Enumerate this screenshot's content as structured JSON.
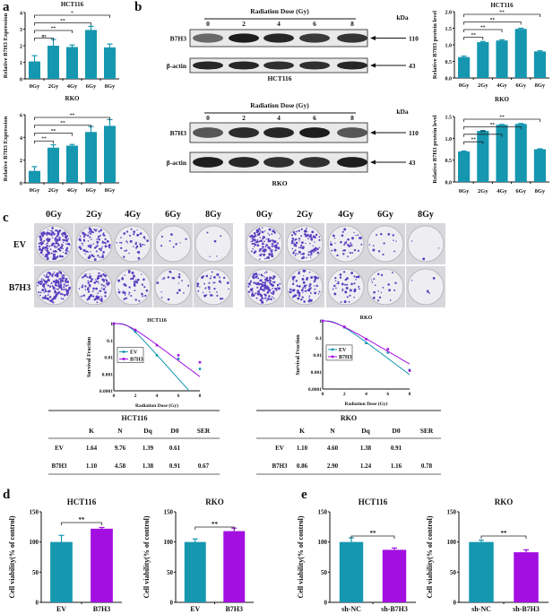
{
  "colors": {
    "teal": "#1597b0",
    "purple": "#a20fe0",
    "axis": "#111111"
  },
  "panel_letters": {
    "a": "a",
    "b": "b",
    "c": "c",
    "d": "d",
    "e": "e"
  },
  "blots": [
    {
      "title": "Radiation Dose (Gy)",
      "lanes": [
        "0",
        "2",
        "4",
        "6",
        "8"
      ],
      "rows": [
        {
          "label": "B7H3",
          "kda": "110",
          "intensity": [
            0.5,
            0.9,
            0.85,
            0.75,
            0.78
          ]
        },
        {
          "label": "β-actin",
          "kda": "43",
          "intensity": [
            0.85,
            0.85,
            0.8,
            0.8,
            0.85
          ]
        }
      ],
      "cell_line": "HCT116",
      "kda_label": "kDa"
    },
    {
      "title": "Radiation Dose (Gy)",
      "lanes": [
        "0",
        "2",
        "4",
        "6",
        "8"
      ],
      "rows": [
        {
          "label": "B7H3",
          "kda": "110",
          "intensity": [
            0.6,
            0.82,
            0.85,
            0.9,
            0.6
          ]
        },
        {
          "label": "β-actin",
          "kda": "43",
          "intensity": [
            0.9,
            0.85,
            0.8,
            0.8,
            0.9
          ]
        }
      ],
      "cell_line": "RKO",
      "kda_label": "kDa"
    }
  ],
  "colony": {
    "doses": [
      "0Gy",
      "2Gy",
      "4Gy",
      "6Gy",
      "8Gy"
    ],
    "rows": [
      "EV",
      "B7H3"
    ],
    "density_hct116": [
      [
        1,
        0.6,
        0.25,
        0.05,
        0.03
      ],
      [
        1,
        0.6,
        0.3,
        0.12,
        0.25
      ]
    ],
    "density_rko": [
      [
        0.7,
        0.55,
        0.25,
        0.08,
        0.02
      ],
      [
        0.8,
        0.55,
        0.25,
        0.12,
        0.03
      ]
    ]
  },
  "tables": [
    {
      "title": "HCT116",
      "headers": [
        "K",
        "N",
        "Dq",
        "D0",
        "SER"
      ],
      "rows": [
        {
          "label": "EV",
          "cells": [
            "1.64",
            "9.76",
            "1.39",
            "0.61",
            ""
          ]
        },
        {
          "label": "B7H3",
          "cells": [
            "1.10",
            "4.58",
            "1.38",
            "0.91",
            "0.67"
          ]
        }
      ]
    },
    {
      "title": "RKO",
      "headers": [
        "K",
        "N",
        "Dq",
        "D0",
        "SER"
      ],
      "rows": [
        {
          "label": "EV",
          "cells": [
            "1.10",
            "4.60",
            "1.38",
            "0.91",
            ""
          ]
        },
        {
          "label": "B7H3",
          "cells": [
            "0.86",
            "2.90",
            "1.24",
            "1.16",
            "0.78"
          ]
        }
      ]
    }
  ],
  "chart_data": [
    {
      "id": "a1",
      "type": "bar",
      "title": "HCT116",
      "ylabel": "Relative B7H3 Expression",
      "categories": [
        "0Gy",
        "2Gy",
        "4Gy",
        "6Gy",
        "8Gy"
      ],
      "values": [
        1.05,
        2.0,
        1.92,
        2.95,
        1.9
      ],
      "errors": [
        0.35,
        0.38,
        0.12,
        0.22,
        0.2
      ],
      "ylim": [
        0,
        4
      ],
      "yticks": [
        "0",
        "1",
        "2",
        "3",
        "4"
      ],
      "brackets": [
        {
          "from": 0,
          "to": 1,
          "label": "ns"
        },
        {
          "from": 0,
          "to": 2,
          "label": "**"
        },
        {
          "from": 0,
          "to": 3,
          "label": "**"
        },
        {
          "from": 0,
          "to": 4,
          "label": "*"
        }
      ]
    },
    {
      "id": "a2",
      "type": "bar",
      "title": "RKO",
      "ylabel": "Relative B7H3 Expression",
      "categories": [
        "0Gy",
        "2Gy",
        "4Gy",
        "6Gy",
        "8Gy"
      ],
      "values": [
        1.05,
        3.1,
        3.28,
        4.48,
        5.02
      ],
      "errors": [
        0.38,
        0.25,
        0.1,
        0.48,
        0.55
      ],
      "ylim": [
        0,
        6
      ],
      "yticks": [
        "0",
        "2",
        "4",
        "6"
      ],
      "brackets": [
        {
          "from": 0,
          "to": 1,
          "label": "**"
        },
        {
          "from": 0,
          "to": 2,
          "label": "**"
        },
        {
          "from": 0,
          "to": 3,
          "label": "**"
        },
        {
          "from": 0,
          "to": 4,
          "label": "**"
        }
      ]
    },
    {
      "id": "b1",
      "type": "bar",
      "title": "HCT116",
      "ylabel": "Relative B7H3 protein level",
      "categories": [
        "0Gy",
        "2Gy",
        "4Gy",
        "6Gy",
        "8Gy"
      ],
      "values": [
        0.63,
        1.08,
        1.13,
        1.48,
        0.8
      ],
      "errors": [
        0.03,
        0.02,
        0.02,
        0.02,
        0.02
      ],
      "ylim": [
        0,
        2
      ],
      "yticks": [
        "0.0",
        "0.5",
        "1.0",
        "1.5",
        "2.0"
      ],
      "brackets": [
        {
          "from": 0,
          "to": 1,
          "label": "**"
        },
        {
          "from": 0,
          "to": 2,
          "label": "**"
        },
        {
          "from": 0,
          "to": 3,
          "label": "**"
        },
        {
          "from": 0,
          "to": 4,
          "label": "**"
        }
      ]
    },
    {
      "id": "b2",
      "type": "bar",
      "title": "RKO",
      "ylabel": "Relative B7H3 protein level",
      "categories": [
        "0Gy",
        "2Gy",
        "4Gy",
        "6Gy",
        "8Gy"
      ],
      "values": [
        0.7,
        1.17,
        1.31,
        1.33,
        0.75
      ],
      "errors": [
        0.01,
        0.01,
        0.01,
        0.01,
        0.01
      ],
      "ylim": [
        0,
        1.5
      ],
      "yticks": [
        "0.0",
        "0.5",
        "1.0",
        "1.5"
      ],
      "brackets": [
        {
          "from": 0,
          "to": 1,
          "label": "**"
        },
        {
          "from": 0,
          "to": 2,
          "label": "**"
        },
        {
          "from": 0,
          "to": 3,
          "label": "**"
        },
        {
          "from": 0,
          "to": 4,
          "label": "**"
        }
      ]
    },
    {
      "id": "c1",
      "type": "scatter",
      "title": "HCT116",
      "xlabel": "Radiation Dose (Gy)",
      "ylabel": "Survival Fraction",
      "xlim": [
        0,
        8
      ],
      "ylim": [
        0.0001,
        1
      ],
      "yscale": "log",
      "xticks": [
        "0",
        "2",
        "4",
        "6",
        "8"
      ],
      "yticks": [
        "0.0001",
        "0.001",
        "0.01",
        "0.1",
        "1"
      ],
      "x": [
        0,
        2,
        4,
        6,
        8
      ],
      "legend": "left",
      "series": [
        {
          "name": "EV",
          "values": [
            1,
            0.33,
            0.013,
            0.008,
            0.002
          ],
          "N": 9.76,
          "D0": 0.61
        },
        {
          "name": "B7H3",
          "values": [
            1,
            0.42,
            0.052,
            0.013,
            0.005
          ],
          "N": 4.58,
          "D0": 0.91
        }
      ]
    },
    {
      "id": "c2",
      "type": "scatter",
      "title": "RKO",
      "xlabel": "Radiation Dose (Gy)",
      "ylabel": "Survival Fraction",
      "xlim": [
        0,
        8
      ],
      "ylim": [
        0.0001,
        1
      ],
      "yscale": "log",
      "xticks": [
        "0",
        "2",
        "4",
        "6",
        "8"
      ],
      "yticks": [
        "0.0001",
        "0.001",
        "0.01",
        "0.1",
        "1"
      ],
      "x": [
        0,
        2,
        4,
        6,
        8
      ],
      "legend": "left",
      "series": [
        {
          "name": "EV",
          "values": [
            1,
            0.42,
            0.05,
            0.014,
            0.0013
          ],
          "N": 4.6,
          "D0": 0.91
        },
        {
          "name": "B7H3",
          "values": [
            1,
            0.45,
            0.085,
            0.022,
            0.0012
          ],
          "N": 2.9,
          "D0": 1.16
        }
      ]
    },
    {
      "id": "d1",
      "type": "bar",
      "title": "HCT116",
      "ylabel": "Cell viability(% of control)",
      "categories": [
        "EV",
        "B7H3"
      ],
      "values": [
        100,
        122
      ],
      "errors": [
        11,
        2
      ],
      "ylim": [
        0,
        150
      ],
      "yticks": [
        "0",
        "50",
        "100",
        "150"
      ],
      "brackets": [
        {
          "from": 0,
          "to": 1,
          "label": "**"
        }
      ]
    },
    {
      "id": "d2",
      "type": "bar",
      "title": "RKO",
      "ylabel": "Cell viability(% of control)",
      "categories": [
        "EV",
        "B7H3"
      ],
      "values": [
        100,
        118
      ],
      "errors": [
        5,
        5
      ],
      "ylim": [
        0,
        150
      ],
      "yticks": [
        "0",
        "50",
        "100",
        "150"
      ],
      "brackets": [
        {
          "from": 0,
          "to": 1,
          "label": "**"
        }
      ]
    },
    {
      "id": "e1",
      "type": "bar",
      "title": "HCT116",
      "ylabel": "Cell viability(% of control)",
      "categories": [
        "sh-NC",
        "sh-B7H3"
      ],
      "values": [
        100,
        87
      ],
      "errors": [
        7,
        3
      ],
      "ylim": [
        0,
        150
      ],
      "yticks": [
        "0",
        "50",
        "100",
        "150"
      ],
      "brackets": [
        {
          "from": 0,
          "to": 1,
          "label": "**"
        }
      ]
    },
    {
      "id": "e2",
      "type": "bar",
      "title": "RKO",
      "ylabel": "Cell viability(% of control)",
      "categories": [
        "sh-NC",
        "sh-B7H3"
      ],
      "values": [
        100,
        83
      ],
      "errors": [
        3,
        4
      ],
      "ylim": [
        0,
        150
      ],
      "yticks": [
        "0",
        "50",
        "100",
        "150"
      ],
      "brackets": [
        {
          "from": 0,
          "to": 1,
          "label": "**"
        }
      ]
    }
  ]
}
